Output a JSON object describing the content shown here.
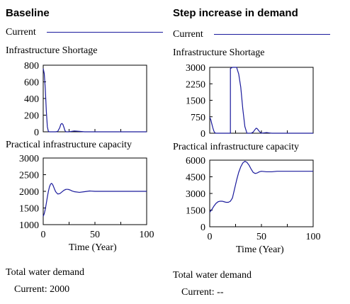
{
  "panels": [
    {
      "heading": "Baseline",
      "legend_label": "Current",
      "footer_title": "Total water demand",
      "footer_value": "Current: 2000"
    },
    {
      "heading": "Step increase in demand",
      "legend_label": "Current",
      "footer_title": "Total water demand",
      "footer_value": "Current: --"
    }
  ],
  "colors": {
    "series": "#1a1a9c",
    "axis": "#000000"
  },
  "chart_data": [
    {
      "type": "line",
      "title": "Infrastructure Shortage",
      "xlim": [
        0,
        100
      ],
      "ylim": [
        0,
        800
      ],
      "yticks": [
        "0",
        "200",
        "400",
        "600",
        "800"
      ],
      "series": [
        {
          "name": "Current",
          "x": [
            0,
            1,
            2,
            3,
            4,
            5,
            6,
            7,
            8,
            10,
            12,
            14,
            16,
            17,
            18,
            19,
            20,
            21,
            22,
            23,
            25,
            30,
            35,
            40,
            50,
            60,
            70,
            80,
            90,
            100
          ],
          "y": [
            760,
            700,
            520,
            250,
            60,
            5,
            0,
            0,
            0,
            0,
            0,
            5,
            50,
            90,
            100,
            90,
            55,
            15,
            0,
            0,
            0,
            10,
            5,
            0,
            0,
            0,
            0,
            0,
            0,
            0
          ]
        }
      ]
    },
    {
      "type": "line",
      "title": "Practical infrastructure capacity",
      "xlim": [
        0,
        100
      ],
      "ylim": [
        1000,
        3000
      ],
      "yticks": [
        "1000",
        "1500",
        "2000",
        "2500",
        "3000"
      ],
      "xticks": [
        "0",
        "50",
        "100"
      ],
      "xlabel": "Time (Year)",
      "series": [
        {
          "name": "Current",
          "x": [
            0,
            1,
            2,
            3,
            4,
            5,
            6,
            7,
            8,
            9,
            10,
            11,
            12,
            14,
            16,
            18,
            20,
            22,
            24,
            26,
            28,
            30,
            35,
            40,
            45,
            50,
            60,
            70,
            80,
            90,
            100
          ],
          "y": [
            1250,
            1330,
            1460,
            1640,
            1830,
            2000,
            2130,
            2210,
            2240,
            2210,
            2140,
            2060,
            1990,
            1920,
            1930,
            1980,
            2030,
            2060,
            2060,
            2040,
            2010,
            1990,
            1970,
            1990,
            2010,
            2000,
            2000,
            2000,
            2000,
            2000,
            2000
          ]
        }
      ]
    },
    {
      "type": "line",
      "title": "Infrastructure Shortage",
      "xlim": [
        0,
        100
      ],
      "ylim": [
        0,
        3000
      ],
      "yticks": [
        "0",
        "750",
        "1500",
        "2250",
        "3000"
      ],
      "series": [
        {
          "name": "Current",
          "x": [
            0,
            1,
            2,
            3,
            4,
            5,
            6,
            8,
            10,
            12,
            14,
            16,
            18,
            19,
            20,
            20.01,
            22,
            24,
            26,
            28,
            30,
            32,
            34,
            36,
            38,
            40,
            42,
            44,
            45,
            46,
            48,
            50,
            55,
            60,
            70,
            80,
            90,
            100
          ],
          "y": [
            720,
            620,
            430,
            250,
            100,
            20,
            0,
            0,
            0,
            0,
            0,
            0,
            0,
            0,
            0,
            2950,
            3000,
            3000,
            3000,
            2700,
            2100,
            1100,
            300,
            0,
            0,
            0,
            50,
            180,
            230,
            200,
            80,
            0,
            30,
            0,
            0,
            0,
            0,
            0
          ]
        }
      ]
    },
    {
      "type": "line",
      "title": "Practical infrastructure capacity",
      "xlim": [
        0,
        100
      ],
      "ylim": [
        0,
        6000
      ],
      "yticks": [
        "0",
        "1500",
        "3000",
        "4500",
        "6000"
      ],
      "xticks": [
        "0",
        "50",
        "100"
      ],
      "xlabel": "Time (Year)",
      "series": [
        {
          "name": "Current",
          "x": [
            0,
            2,
            4,
            6,
            8,
            10,
            12,
            14,
            16,
            18,
            20,
            22,
            24,
            26,
            28,
            30,
            32,
            34,
            36,
            38,
            40,
            42,
            44,
            46,
            48,
            50,
            55,
            60,
            65,
            70,
            80,
            90,
            100
          ],
          "y": [
            1300,
            1550,
            1850,
            2100,
            2250,
            2300,
            2300,
            2250,
            2200,
            2200,
            2300,
            2600,
            3400,
            4200,
            4900,
            5400,
            5750,
            5900,
            5800,
            5550,
            5200,
            4900,
            4800,
            4850,
            4950,
            5000,
            4950,
            4950,
            5000,
            5000,
            5000,
            5000,
            5000
          ]
        }
      ]
    }
  ]
}
